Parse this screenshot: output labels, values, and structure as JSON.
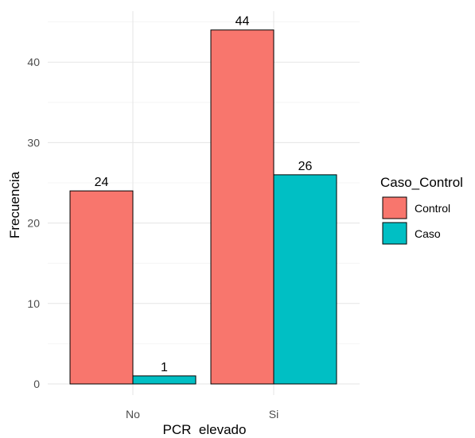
{
  "chart_data": {
    "type": "bar",
    "title": "",
    "xlabel": "PCR  elevado",
    "ylabel": "Frecuencia",
    "categories": [
      "No",
      "Si"
    ],
    "series": [
      {
        "name": "Control",
        "values": [
          24,
          44
        ],
        "color": "#F8766D"
      },
      {
        "name": "Caso",
        "values": [
          1,
          26
        ],
        "color": "#00BFC4"
      }
    ],
    "ylim": [
      0,
      46
    ],
    "y_ticks": [
      0,
      10,
      20,
      30,
      40
    ],
    "grid": true,
    "legend": {
      "title": "Caso_Control",
      "position": "right"
    }
  }
}
